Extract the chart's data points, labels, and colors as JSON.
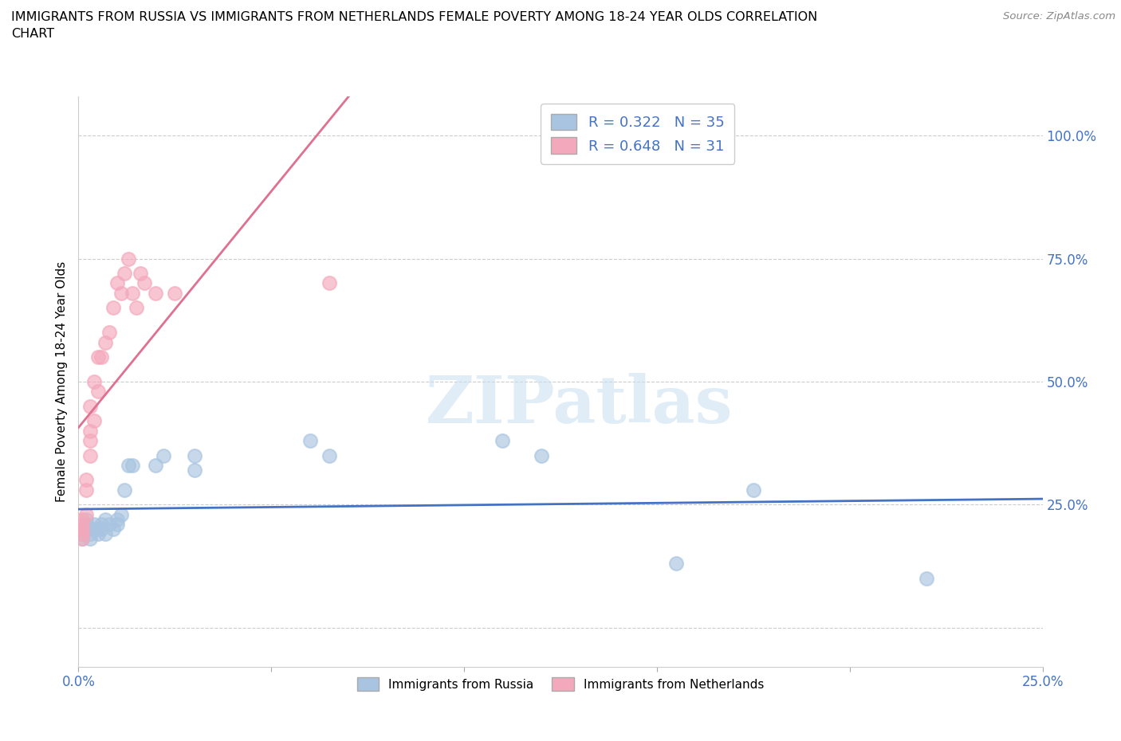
{
  "title": "IMMIGRANTS FROM RUSSIA VS IMMIGRANTS FROM NETHERLANDS FEMALE POVERTY AMONG 18-24 YEAR OLDS CORRELATION\nCHART",
  "source": "Source: ZipAtlas.com",
  "ylabel": "Female Poverty Among 18-24 Year Olds",
  "legend_label1": "Immigrants from Russia",
  "legend_label2": "Immigrants from Netherlands",
  "R1": 0.322,
  "N1": 35,
  "R2": 0.648,
  "N2": 31,
  "color_russia": "#a8c4e0",
  "color_netherlands": "#f4a8bb",
  "color_russia_line": "#4472c4",
  "color_netherlands_line": "#e07090",
  "xlim": [
    0.0,
    0.25
  ],
  "ylim": [
    -0.08,
    1.08
  ],
  "yticks": [
    0.0,
    0.25,
    0.5,
    0.75,
    1.0
  ],
  "ytick_labels": [
    "",
    "25.0%",
    "50.0%",
    "75.0%",
    "100.0%"
  ],
  "xticks": [
    0.0,
    0.05,
    0.1,
    0.15,
    0.2,
    0.25
  ],
  "xtick_labels": [
    "0.0%",
    "",
    "",
    "",
    "",
    "25.0%"
  ],
  "russia_x": [
    0.001,
    0.001,
    0.001,
    0.002,
    0.002,
    0.002,
    0.003,
    0.003,
    0.004,
    0.004,
    0.005,
    0.005,
    0.006,
    0.006,
    0.007,
    0.007,
    0.008,
    0.009,
    0.01,
    0.01,
    0.011,
    0.012,
    0.013,
    0.014,
    0.02,
    0.022,
    0.03,
    0.03,
    0.06,
    0.065,
    0.11,
    0.12,
    0.155,
    0.175,
    0.22
  ],
  "russia_y": [
    0.2,
    0.19,
    0.18,
    0.22,
    0.21,
    0.2,
    0.19,
    0.18,
    0.2,
    0.21,
    0.19,
    0.2,
    0.21,
    0.2,
    0.22,
    0.19,
    0.21,
    0.2,
    0.22,
    0.21,
    0.23,
    0.28,
    0.33,
    0.33,
    0.33,
    0.35,
    0.35,
    0.32,
    0.38,
    0.35,
    0.38,
    0.35,
    0.13,
    0.28,
    0.1
  ],
  "netherlands_x": [
    0.001,
    0.001,
    0.001,
    0.001,
    0.001,
    0.002,
    0.002,
    0.002,
    0.003,
    0.003,
    0.003,
    0.003,
    0.004,
    0.004,
    0.005,
    0.005,
    0.006,
    0.007,
    0.008,
    0.009,
    0.01,
    0.011,
    0.012,
    0.013,
    0.014,
    0.015,
    0.016,
    0.017,
    0.02,
    0.025,
    0.065
  ],
  "netherlands_y": [
    0.2,
    0.22,
    0.18,
    0.19,
    0.21,
    0.23,
    0.3,
    0.28,
    0.35,
    0.4,
    0.45,
    0.38,
    0.5,
    0.42,
    0.55,
    0.48,
    0.55,
    0.58,
    0.6,
    0.65,
    0.7,
    0.68,
    0.72,
    0.75,
    0.68,
    0.65,
    0.72,
    0.7,
    0.68,
    0.68,
    0.7
  ],
  "watermark_text": "ZIPatlas",
  "background_color": "#ffffff",
  "grid_color": "#cccccc"
}
